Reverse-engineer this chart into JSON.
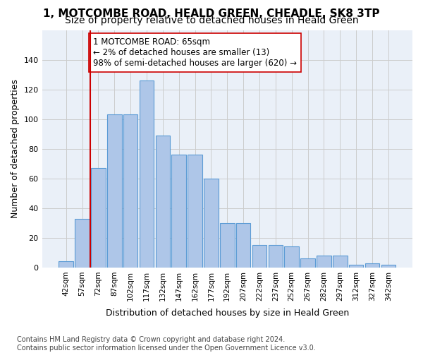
{
  "title": "1, MOTCOMBE ROAD, HEALD GREEN, CHEADLE, SK8 3TP",
  "subtitle": "Size of property relative to detached houses in Heald Green",
  "xlabel": "Distribution of detached houses by size in Heald Green",
  "ylabel": "Number of detached properties",
  "bar_values": [
    4,
    33,
    67,
    103,
    103,
    126,
    89,
    76,
    76,
    60,
    30,
    30,
    15,
    15,
    14,
    6,
    8,
    8,
    2,
    3,
    2
  ],
  "x_tick_labels": [
    "42sqm",
    "57sqm",
    "72sqm",
    "87sqm",
    "102sqm",
    "117sqm",
    "132sqm",
    "147sqm",
    "162sqm",
    "177sqm",
    "192sqm",
    "207sqm",
    "222sqm",
    "237sqm",
    "252sqm",
    "267sqm",
    "282sqm",
    "297sqm",
    "312sqm",
    "327sqm",
    "342sqm"
  ],
  "bar_color": "#aec6e8",
  "bar_edge_color": "#5b9bd5",
  "vline_color": "#cc0000",
  "annotation_text": "1 MOTCOMBE ROAD: 65sqm\n← 2% of detached houses are smaller (13)\n98% of semi-detached houses are larger (620) →",
  "annotation_box_color": "#ffffff",
  "annotation_box_edge": "#cc0000",
  "ylim": [
    0,
    160
  ],
  "yticks": [
    0,
    20,
    40,
    60,
    80,
    100,
    120,
    140
  ],
  "grid_color": "#cccccc",
  "bg_color": "#eaf0f8",
  "footnote": "Contains HM Land Registry data © Crown copyright and database right 2024.\nContains public sector information licensed under the Open Government Licence v3.0.",
  "title_fontsize": 11,
  "subtitle_fontsize": 10,
  "xlabel_fontsize": 9,
  "ylabel_fontsize": 9,
  "annotation_fontsize": 8.5,
  "footnote_fontsize": 7
}
